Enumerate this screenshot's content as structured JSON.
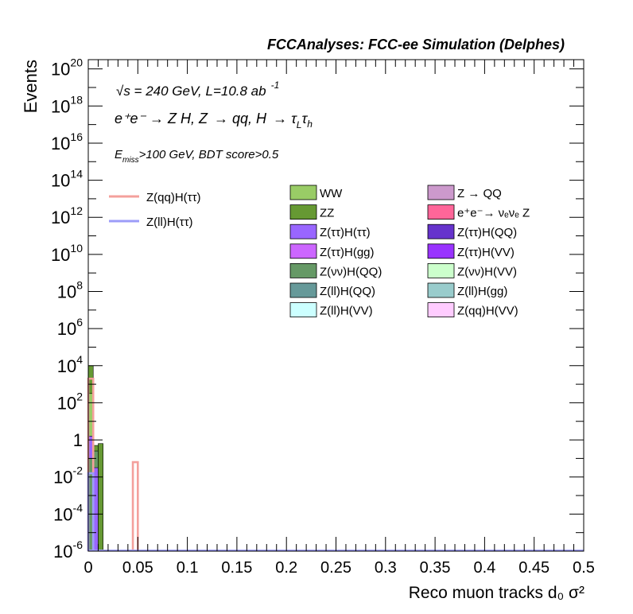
{
  "header": {
    "title": "FCCAnalyses: FCC-ee Simulation (Delphes)",
    "energy_lumi": "√s = 240 GeV, L=10.8 ab",
    "lumi_exp": "-1",
    "process_a": "e⁺e⁻ → Z H, Z",
    "process_b": "→ qq, H",
    "process_c": "→ τ",
    "tau_l_sub": "L",
    "tau_h": "τ",
    "tau_h_sub": "h",
    "cut_e": "E",
    "cut_sub": "miss",
    "cut_rest": ">100 GeV, BDT score>0.5"
  },
  "chart_data": {
    "type": "bar",
    "title": "FCCAnalyses: FCC-ee Simulation (Delphes)",
    "xlabel": "Reco muon tracks d₀ σ²",
    "ylabel": "Events",
    "xlim": [
      0,
      0.5
    ],
    "ylim_log10": [
      -6,
      20.5
    ],
    "log_y": true,
    "grid": false,
    "legend_placement": "top",
    "x_ticks": [
      {
        "v": 0,
        "label": "0"
      },
      {
        "v": 0.05,
        "label": "0.05"
      },
      {
        "v": 0.1,
        "label": "0.1"
      },
      {
        "v": 0.15,
        "label": "0.15"
      },
      {
        "v": 0.2,
        "label": "0.2"
      },
      {
        "v": 0.25,
        "label": "0.25"
      },
      {
        "v": 0.3,
        "label": "0.3"
      },
      {
        "v": 0.35,
        "label": "0.35"
      },
      {
        "v": 0.4,
        "label": "0.4"
      },
      {
        "v": 0.45,
        "label": "0.45"
      },
      {
        "v": 0.5,
        "label": "0.5"
      }
    ],
    "y_ticks": [
      {
        "exp": 20,
        "base": "10",
        "sup": "20"
      },
      {
        "exp": 18,
        "base": "10",
        "sup": "18"
      },
      {
        "exp": 16,
        "base": "10",
        "sup": "16"
      },
      {
        "exp": 14,
        "base": "10",
        "sup": "14"
      },
      {
        "exp": 12,
        "base": "10",
        "sup": "12"
      },
      {
        "exp": 10,
        "base": "10",
        "sup": "10"
      },
      {
        "exp": 8,
        "base": "10",
        "sup": "8"
      },
      {
        "exp": 6,
        "base": "10",
        "sup": "6"
      },
      {
        "exp": 4,
        "base": "10",
        "sup": "4"
      },
      {
        "exp": 2,
        "base": "10",
        "sup": "2"
      },
      {
        "exp": 0,
        "base": "1",
        "sup": ""
      },
      {
        "exp": -2,
        "base": "10",
        "sup": "-2"
      },
      {
        "exp": -4,
        "base": "10",
        "sup": "-4"
      },
      {
        "exp": -6,
        "base": "10",
        "sup": "-6"
      }
    ],
    "signal_legend": [
      {
        "name": "Z(qq)H(ττ)",
        "color": "#f4a09c"
      },
      {
        "name": "Z(ll)H(ττ)",
        "color": "#9c9cf8"
      }
    ],
    "background_legend": [
      {
        "name": "WW",
        "color": "#99cc66"
      },
      {
        "name": "Z → QQ",
        "color": "#cc99cc"
      },
      {
        "name": "ZZ",
        "color": "#669933"
      },
      {
        "name": "e⁺e⁻→ νₑνₑ Z",
        "color": "#ff6699"
      },
      {
        "name": "Z(ττ)H(ττ)",
        "color": "#9966ff"
      },
      {
        "name": "Z(ττ)H(QQ)",
        "color": "#6633cc"
      },
      {
        "name": "Z(ττ)H(gg)",
        "color": "#cc66ff"
      },
      {
        "name": "Z(ττ)H(VV)",
        "color": "#9933ff"
      },
      {
        "name": "Z(νν)H(QQ)",
        "color": "#669966"
      },
      {
        "name": "Z(νν)H(VV)",
        "color": "#ccffcc"
      },
      {
        "name": "Z(ll)H(QQ)",
        "color": "#669999"
      },
      {
        "name": "Z(ll)H(gg)",
        "color": "#99cccc"
      },
      {
        "name": "Z(ll)H(VV)",
        "color": "#ccffff"
      },
      {
        "name": "Z(qq)H(VV)",
        "color": "#ffccff"
      }
    ],
    "stack_bins": [
      {
        "x0": 0.0,
        "x1": 0.005,
        "top_log10": 4.0,
        "layers": [
          {
            "color": "#669933",
            "top_log10": 4.0
          },
          {
            "color": "#99cc66",
            "top_log10": 2.5
          },
          {
            "color": "#9966ff",
            "top_log10": 0.2
          },
          {
            "color": "#669966",
            "top_log10": -1.0
          }
        ]
      },
      {
        "x0": 0.005,
        "x1": 0.01,
        "top_log10": -0.3,
        "layers": [
          {
            "color": "#669933",
            "top_log10": -0.3
          },
          {
            "color": "#669966",
            "top_log10": -0.6
          },
          {
            "color": "#9966ff",
            "top_log10": -1.5
          }
        ]
      },
      {
        "x0": 0.01,
        "x1": 0.015,
        "top_log10": -0.2,
        "layers": [
          {
            "color": "#669933",
            "top_log10": -0.2
          }
        ]
      }
    ],
    "signal_hist": [
      {
        "name": "Z(qq)H(ττ)",
        "color": "#f4a09c",
        "bins": [
          {
            "x0": 0.0,
            "x1": 0.005,
            "log10": 3.3
          },
          {
            "x0": 0.045,
            "x1": 0.05,
            "log10": -1.2
          }
        ]
      },
      {
        "name": "Z(ll)H(ττ)",
        "color": "#9c9cf8",
        "bins": [
          {
            "x0": 0.0,
            "x1": 0.005,
            "log10": -1.8
          }
        ]
      }
    ]
  }
}
